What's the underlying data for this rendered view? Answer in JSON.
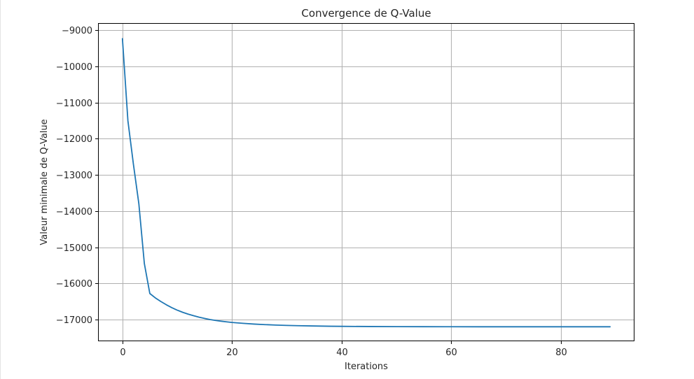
{
  "chart_data": {
    "type": "line",
    "title": "Convergence de Q-Value",
    "xlabel": "Iterations",
    "ylabel": "Valeur minimale de Q-Value",
    "xlim": [
      -4.45,
      93.45
    ],
    "ylim": [
      -17600,
      -8800
    ],
    "x_ticks": [
      0,
      20,
      40,
      60,
      80
    ],
    "x_tick_labels": [
      "0",
      "20",
      "40",
      "60",
      "80"
    ],
    "y_ticks": [
      -9000,
      -10000,
      -11000,
      -12000,
      -13000,
      -14000,
      -15000,
      -16000,
      -17000
    ],
    "y_tick_labels": [
      "−9000",
      "−10000",
      "−11000",
      "−12000",
      "−13000",
      "−14000",
      "−15000",
      "−16000",
      "−17000"
    ],
    "grid": true,
    "series": [
      {
        "color": "#1f77b4",
        "x": [
          0,
          1,
          2,
          3,
          4,
          5,
          6,
          7,
          8,
          9,
          10,
          11,
          12,
          13,
          14,
          15,
          16,
          17,
          18,
          19,
          20,
          22,
          24,
          26,
          28,
          30,
          32,
          35,
          38,
          40,
          45,
          50,
          55,
          60,
          65,
          70,
          75,
          80,
          85,
          89
        ],
        "values": [
          -9230,
          -11500,
          -12700,
          -13800,
          -15450,
          -16280,
          -16400,
          -16500,
          -16590,
          -16670,
          -16740,
          -16800,
          -16850,
          -16895,
          -16935,
          -16970,
          -17000,
          -17025,
          -17045,
          -17063,
          -17080,
          -17105,
          -17125,
          -17140,
          -17152,
          -17162,
          -17170,
          -17178,
          -17185,
          -17188,
          -17193,
          -17196,
          -17198,
          -17199,
          -17200,
          -17200,
          -17200,
          -17200,
          -17200,
          -17200
        ]
      }
    ]
  }
}
